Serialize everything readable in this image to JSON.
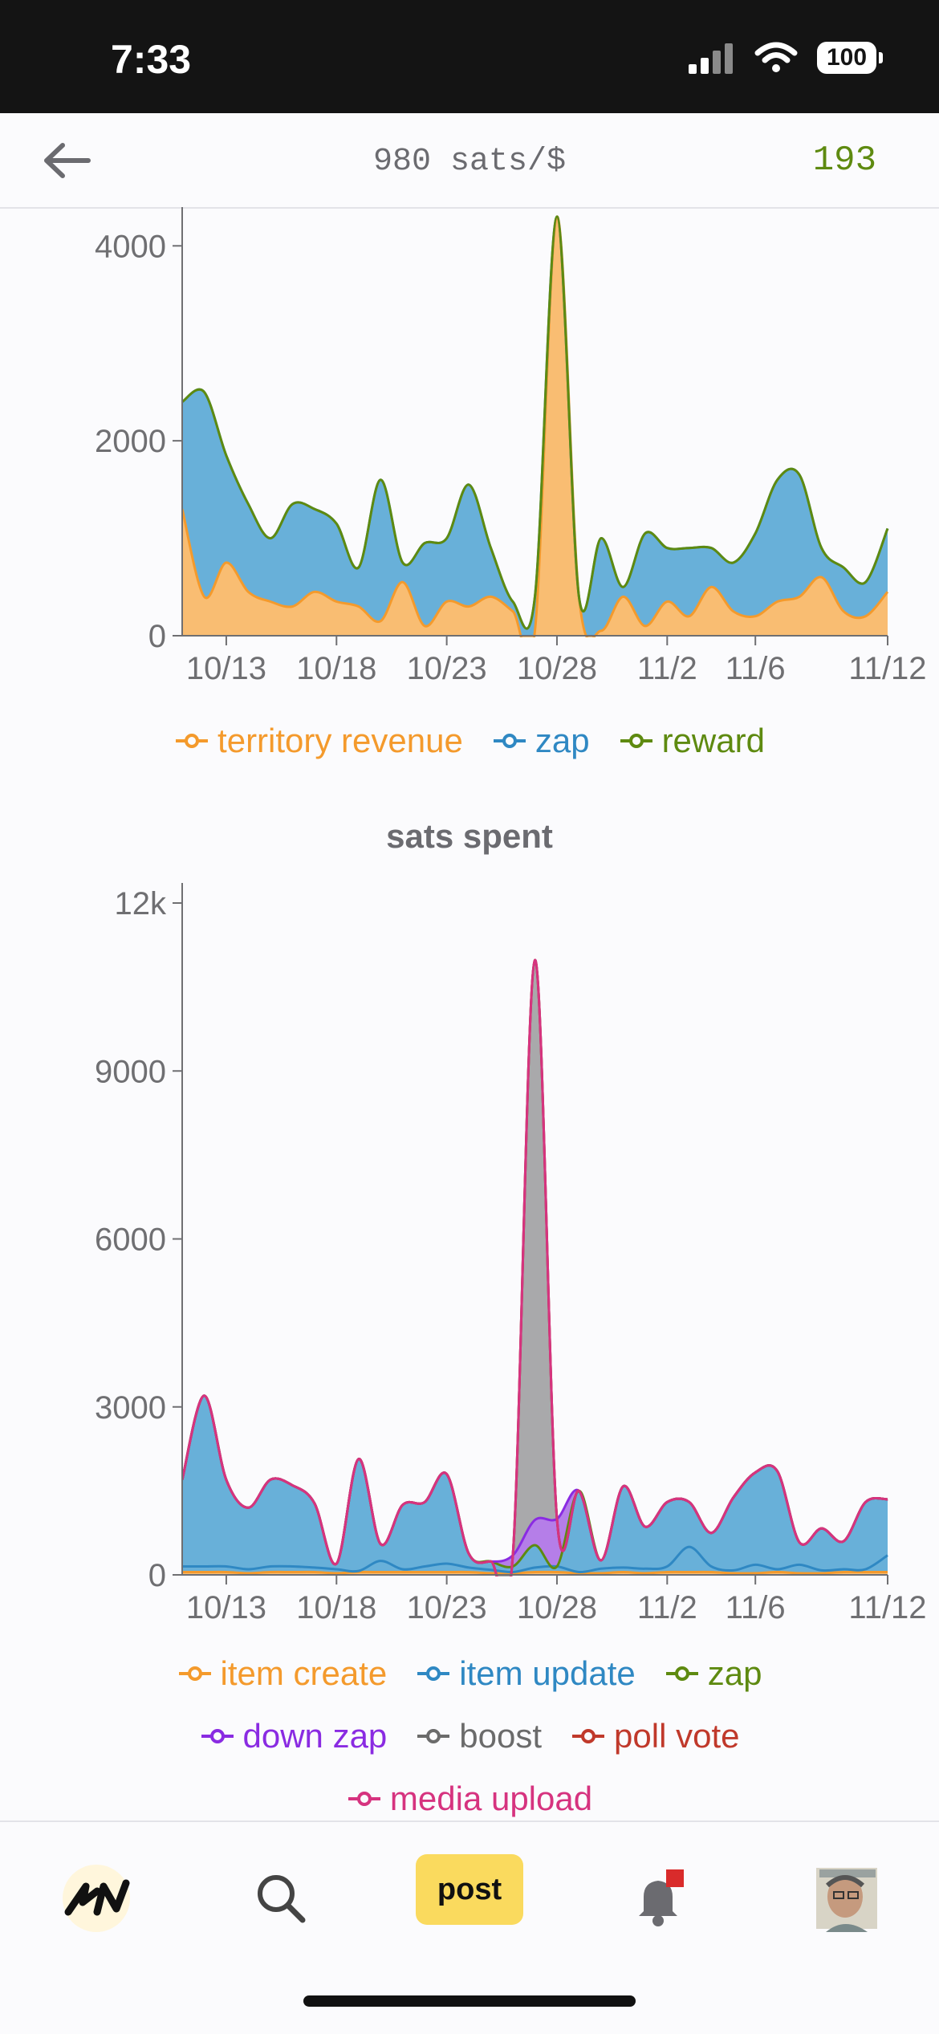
{
  "status": {
    "time": "7:33",
    "battery": "100"
  },
  "header": {
    "price": "980 sats/$",
    "wallet": "193"
  },
  "chart_data": [
    {
      "type": "area",
      "title": "",
      "x": [
        "10/11",
        "10/12",
        "10/13",
        "10/14",
        "10/15",
        "10/16",
        "10/17",
        "10/18",
        "10/19",
        "10/20",
        "10/21",
        "10/22",
        "10/23",
        "10/24",
        "10/25",
        "10/26",
        "10/27",
        "10/28",
        "10/29",
        "10/30",
        "10/31",
        "11/1",
        "11/2",
        "11/3",
        "11/4",
        "11/5",
        "11/6",
        "11/7",
        "11/8",
        "11/9",
        "11/10",
        "11/11",
        "11/12"
      ],
      "x_ticks": [
        "10/13",
        "10/18",
        "10/23",
        "10/28",
        "11/2",
        "11/6",
        "11/12"
      ],
      "y_ticks": [
        "0",
        "2000",
        "4000"
      ],
      "ylim": [
        0,
        4200
      ],
      "colors": {
        "territory revenue": "#f49a2c",
        "zap": "#2f88c3",
        "reward": "#5e8a10"
      },
      "series": [
        {
          "name": "territory revenue",
          "values": [
            1300,
            400,
            750,
            450,
            350,
            300,
            450,
            350,
            300,
            150,
            550,
            100,
            350,
            300,
            400,
            250,
            50,
            4300,
            400,
            50,
            400,
            100,
            350,
            200,
            500,
            250,
            200,
            350,
            400,
            600,
            250,
            200,
            450
          ]
        },
        {
          "name": "zap",
          "values": [
            1100,
            2100,
            1100,
            900,
            650,
            1050,
            850,
            800,
            400,
            1450,
            200,
            850,
            650,
            1250,
            500,
            100,
            350,
            0,
            0,
            950,
            100,
            950,
            550,
            700,
            400,
            500,
            850,
            1250,
            1250,
            300,
            450,
            350,
            650
          ]
        },
        {
          "name": "reward",
          "values": [
            0,
            0,
            0,
            0,
            0,
            0,
            0,
            0,
            0,
            0,
            0,
            0,
            0,
            0,
            0,
            0,
            0,
            0,
            0,
            0,
            0,
            0,
            0,
            0,
            0,
            0,
            0,
            0,
            0,
            0,
            0,
            0,
            0
          ]
        }
      ],
      "legend": [
        "territory revenue",
        "zap",
        "reward"
      ]
    },
    {
      "type": "area",
      "title": "sats spent",
      "x": [
        "10/11",
        "10/12",
        "10/13",
        "10/14",
        "10/15",
        "10/16",
        "10/17",
        "10/18",
        "10/19",
        "10/20",
        "10/21",
        "10/22",
        "10/23",
        "10/24",
        "10/25",
        "10/26",
        "10/27",
        "10/28",
        "10/29",
        "10/30",
        "10/31",
        "11/1",
        "11/2",
        "11/3",
        "11/4",
        "11/5",
        "11/6",
        "11/7",
        "11/8",
        "11/9",
        "11/10",
        "11/11",
        "11/12"
      ],
      "x_ticks": [
        "10/13",
        "10/18",
        "10/23",
        "10/28",
        "11/2",
        "11/6",
        "11/12"
      ],
      "y_ticks": [
        "0",
        "3000",
        "6000",
        "9000",
        "12k"
      ],
      "ylim": [
        0,
        12000
      ],
      "colors": {
        "item create": "#f49a2c",
        "item update": "#2f88c3",
        "zap": "#5e8a10",
        "down zap": "#8a2be2",
        "boost": "#6b6b6b",
        "poll vote": "#c0392b",
        "media upload": "#d6337f"
      },
      "series": [
        {
          "name": "item create",
          "values": [
            50,
            50,
            50,
            30,
            50,
            50,
            50,
            30,
            50,
            50,
            50,
            50,
            50,
            50,
            30,
            30,
            50,
            50,
            30,
            30,
            50,
            30,
            50,
            50,
            50,
            30,
            30,
            50,
            30,
            30,
            50,
            50,
            50
          ]
        },
        {
          "name": "item update",
          "values": [
            100,
            100,
            100,
            70,
            100,
            100,
            80,
            70,
            20,
            200,
            50,
            100,
            150,
            80,
            60,
            20,
            80,
            100,
            20,
            80,
            80,
            80,
            100,
            450,
            100,
            50,
            150,
            50,
            150,
            50,
            50,
            50,
            300
          ]
        },
        {
          "name": "zap",
          "values": [
            1550,
            3050,
            1550,
            1100,
            1550,
            1450,
            1150,
            100,
            2000,
            300,
            1150,
            1150,
            1600,
            250,
            150,
            100,
            400,
            0,
            1450,
            150,
            1450,
            750,
            1150,
            800,
            600,
            1300,
            1650,
            1750,
            400,
            750,
            500,
            1200,
            1000
          ]
        },
        {
          "name": "down zap",
          "values": [
            0,
            0,
            0,
            0,
            0,
            0,
            0,
            0,
            0,
            0,
            0,
            0,
            0,
            0,
            0,
            200,
            450,
            850,
            0,
            0,
            0,
            0,
            0,
            0,
            0,
            0,
            0,
            0,
            0,
            0,
            0,
            0,
            0
          ]
        },
        {
          "name": "boost",
          "values": [
            0,
            0,
            0,
            0,
            0,
            0,
            0,
            0,
            0,
            0,
            0,
            0,
            0,
            0,
            0,
            0,
            10000,
            0,
            0,
            0,
            0,
            0,
            0,
            0,
            0,
            0,
            0,
            0,
            0,
            0,
            0,
            0,
            0
          ]
        },
        {
          "name": "poll vote",
          "values": [
            0,
            0,
            0,
            0,
            0,
            0,
            0,
            0,
            0,
            0,
            0,
            0,
            0,
            0,
            0,
            0,
            0,
            0,
            0,
            0,
            0,
            0,
            0,
            0,
            0,
            0,
            0,
            0,
            0,
            0,
            0,
            0,
            0
          ]
        },
        {
          "name": "media upload",
          "values": [
            0,
            0,
            0,
            0,
            0,
            0,
            0,
            0,
            0,
            0,
            0,
            0,
            0,
            0,
            0,
            0,
            0,
            0,
            0,
            0,
            0,
            0,
            0,
            0,
            0,
            0,
            0,
            0,
            0,
            0,
            0,
            0,
            0
          ]
        }
      ],
      "legend": [
        "item create",
        "item update",
        "zap",
        "down zap",
        "boost",
        "poll vote",
        "media upload"
      ]
    }
  ],
  "tabbar": {
    "logo": "SN",
    "post_label": "post"
  }
}
